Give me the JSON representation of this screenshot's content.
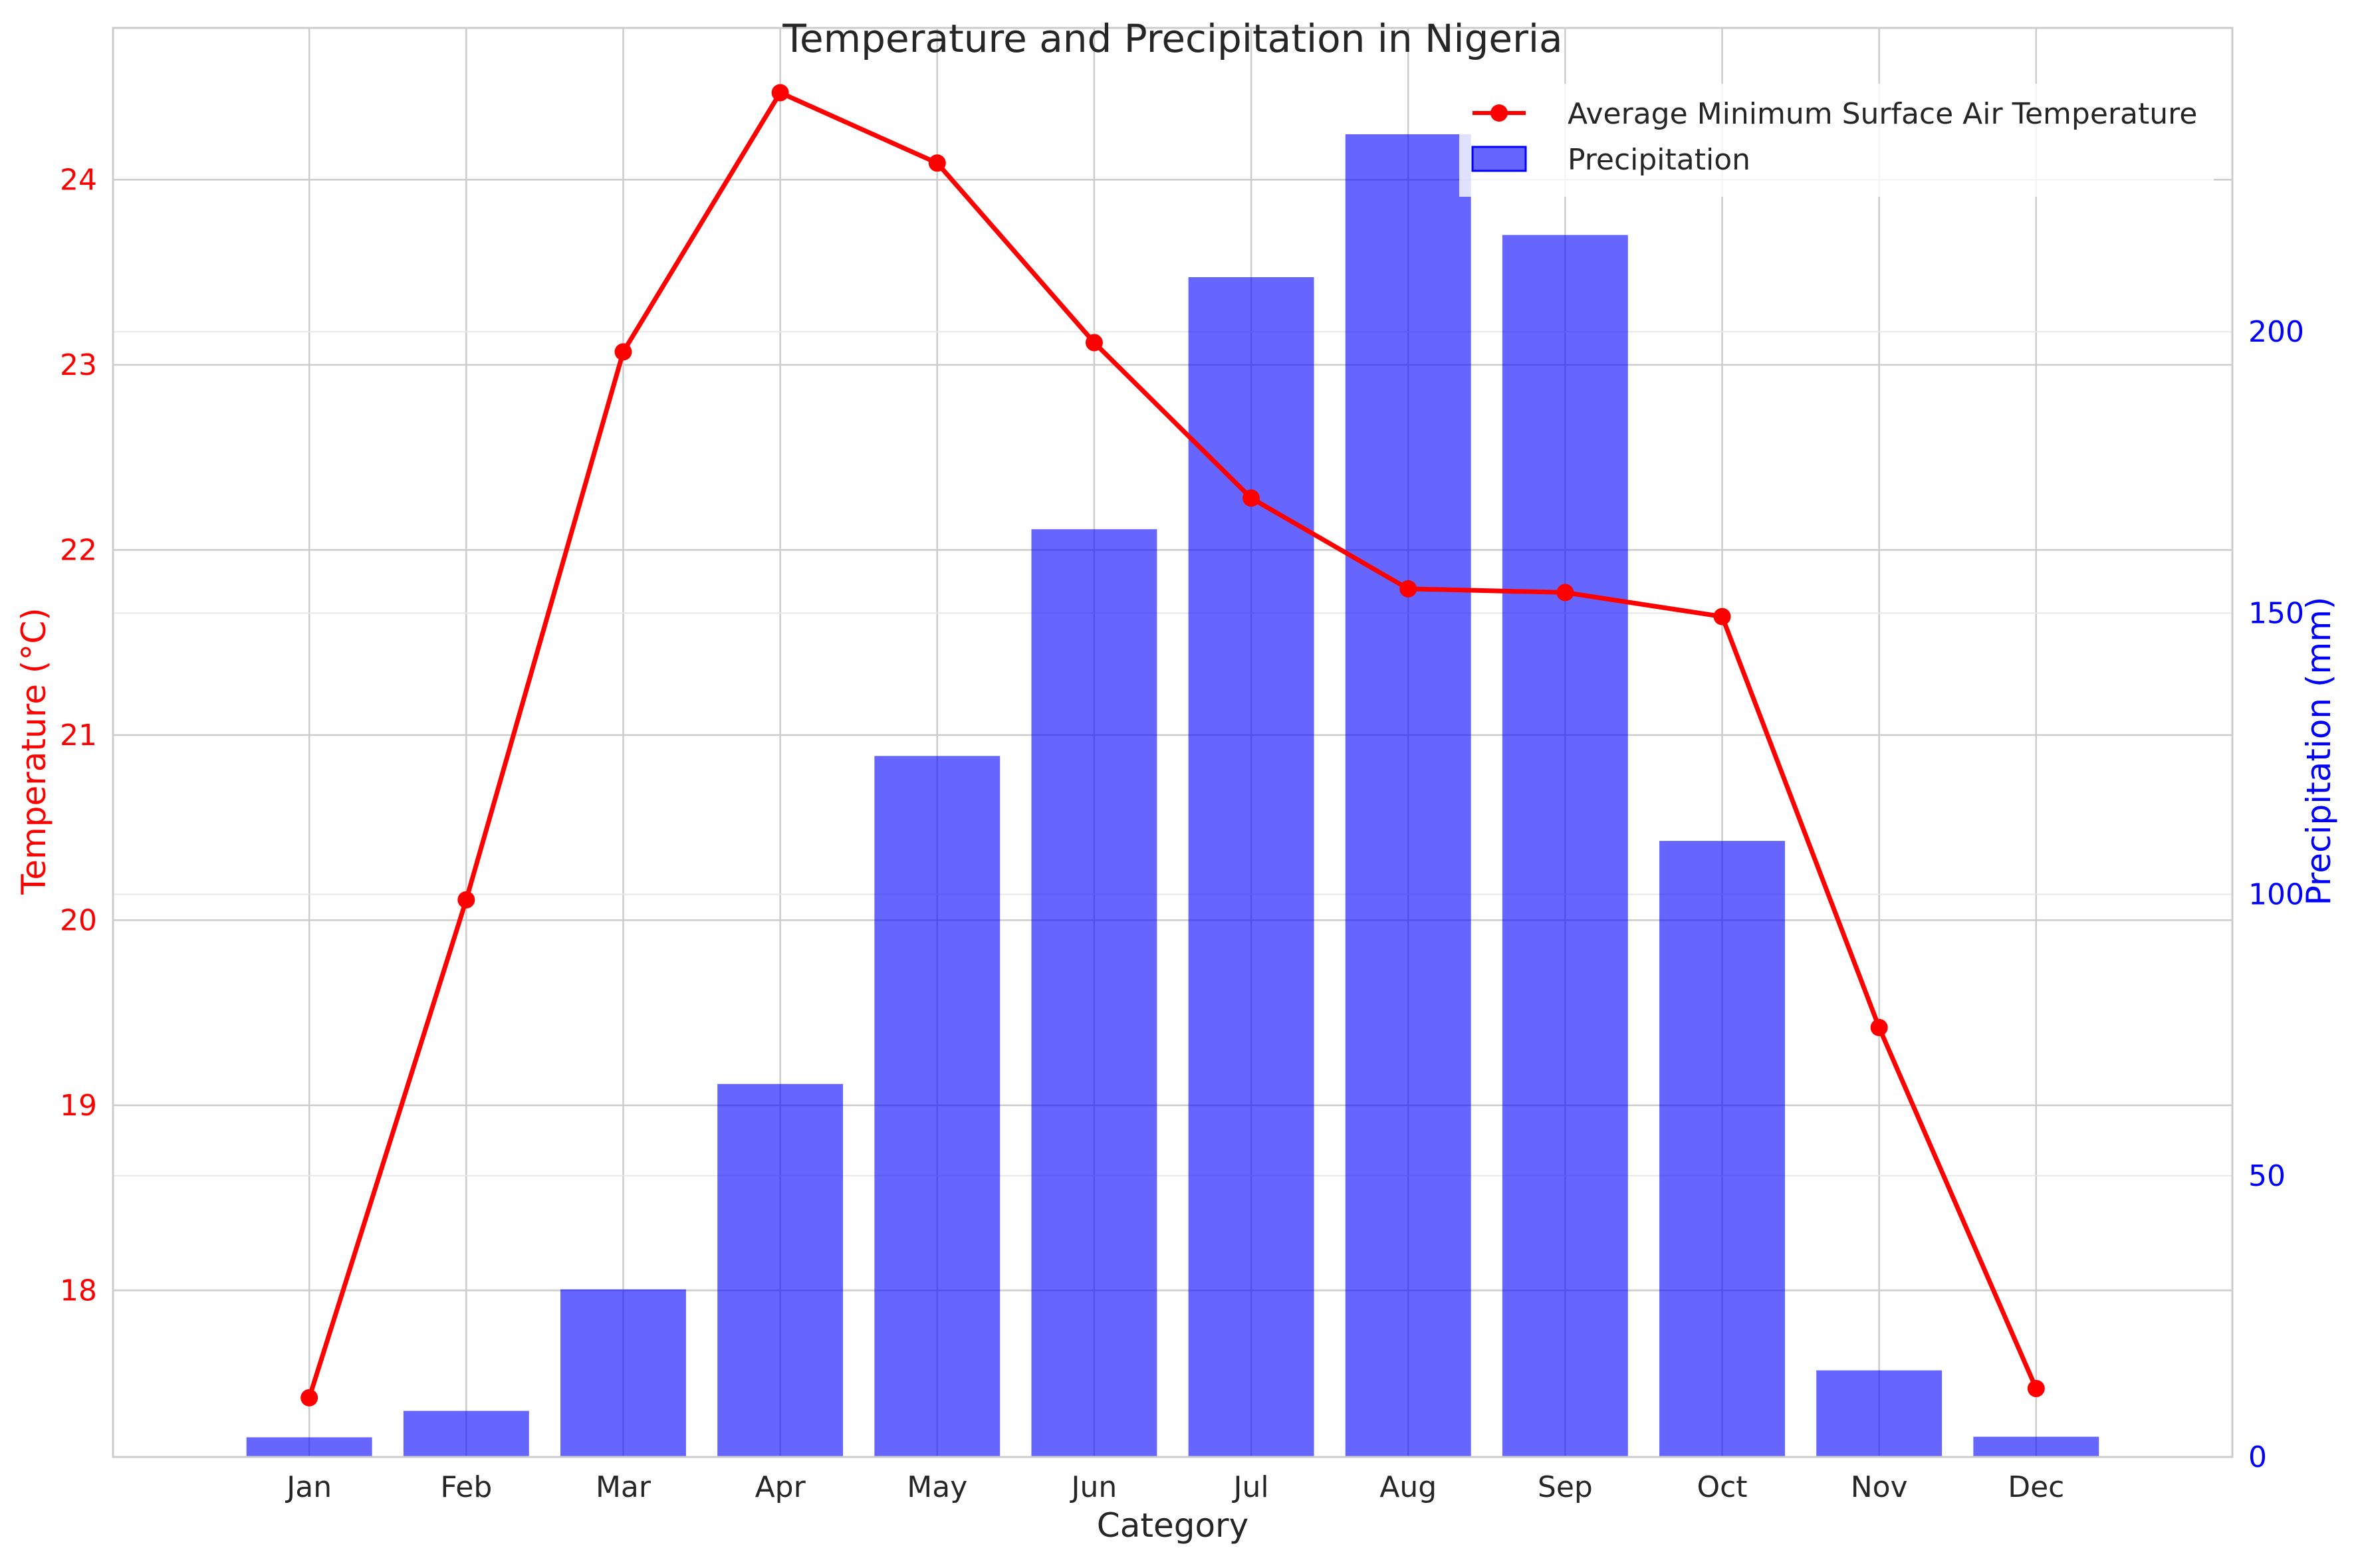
{
  "chart_data": {
    "type": "bar+line",
    "title": "Temperature and Precipitation in Nigeria",
    "xlabel": "Category",
    "categories": [
      "Jan",
      "Feb",
      "Mar",
      "Apr",
      "May",
      "Jun",
      "Jul",
      "Aug",
      "Sep",
      "Oct",
      "Nov",
      "Dec"
    ],
    "y_left": {
      "label": "Temperature (°C)",
      "ticks": [
        "18",
        "19",
        "20",
        "21",
        "22",
        "23",
        "24"
      ],
      "tick_values": [
        18,
        19,
        20,
        21,
        22,
        23,
        24
      ],
      "range": [
        17.1,
        24.82
      ],
      "color": "#ff0000"
    },
    "y_right": {
      "label": "Precipitation (mm)",
      "ticks": [
        "0",
        "50",
        "100",
        "150",
        "200"
      ],
      "tick_values": [
        0,
        50,
        100,
        150,
        200
      ],
      "range": [
        0,
        254
      ],
      "color": "#0000ff"
    },
    "series": [
      {
        "name": "Average Minimum Surface Air Temperature",
        "kind": "line",
        "axis": "left",
        "color": "#ff0000",
        "marker": "circle",
        "values": [
          17.42,
          20.11,
          23.07,
          24.47,
          24.09,
          23.12,
          22.28,
          21.79,
          21.77,
          21.64,
          19.42,
          17.47
        ]
      },
      {
        "name": "Precipitation",
        "kind": "bar",
        "axis": "right",
        "color": "#0000ff",
        "opacity": 0.6,
        "values": [
          3.5,
          8.2,
          29.8,
          66.3,
          124.6,
          164.9,
          209.7,
          235.1,
          217.2,
          109.5,
          15.4,
          3.6
        ]
      }
    ],
    "legend": {
      "position": "top-right"
    },
    "grid": true
  }
}
